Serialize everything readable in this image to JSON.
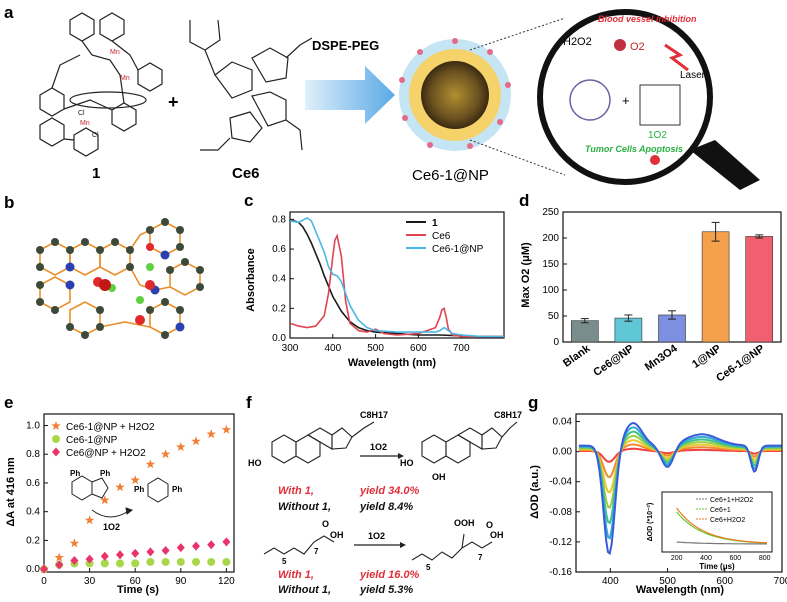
{
  "panels": {
    "a": {
      "letter": "a",
      "compound1_label": "1",
      "ce6_label": "Ce6",
      "plus": "+",
      "arrow_label": "DSPE-PEG",
      "np_label": "Ce6-1@NP",
      "h2o2": "H2O2",
      "o2": "O2",
      "blood_vessel": "Blood vessel inhibition",
      "laser": "Laser",
      "singlet_o2": "1O2",
      "tumor_cells": "Tumor Cells Apoptosis",
      "cl": "Cl",
      "mn": "Mn"
    },
    "b": {
      "letter": "b"
    },
    "f": {
      "letter": "f",
      "sub1": "C8H17",
      "reagent": "1O2",
      "with1_a": "With 1,",
      "yield1_a": "yield 34.0%",
      "without1_a": "Without 1,",
      "yield2_a": "yield 8.4%",
      "with1_b": "With 1,",
      "yield1_b": "yield 16.0%",
      "without1_b": "Without 1,",
      "yield2_b": "yield 5.3%",
      "ho": "HO",
      "oh": "OH",
      "ooh": "OOH",
      "o": "O",
      "sub_5": "5",
      "sub_7": "7"
    }
  },
  "colors": {
    "black": "#1a1a1a",
    "red": "#e0454f",
    "cyan": "#4cb7e6",
    "orange": "#f07e36",
    "green": "#a8d84a",
    "pink": "#e8346a",
    "bar_blank": "#7a8c8c",
    "bar_ce6np": "#5fc7d6",
    "bar_mn3o4": "#7c8fe0",
    "bar_1np": "#f5a04a",
    "bar_ce61np": "#f0606e"
  },
  "chart_data": [
    {
      "id": "c",
      "letter": "c",
      "type": "line",
      "xlabel": "Wavelength (nm)",
      "ylabel": "Absorbance",
      "xlim": [
        300,
        800
      ],
      "ylim": [
        0,
        0.85
      ],
      "xticks": [
        300,
        400,
        500,
        600,
        700
      ],
      "yticks": [
        0.0,
        0.2,
        0.4,
        0.6,
        0.8
      ],
      "legend_position": "top-right",
      "series": [
        {
          "name": "1",
          "x": [
            300,
            310,
            320,
            330,
            340,
            350,
            360,
            370,
            380,
            390,
            400,
            420,
            440,
            460,
            480,
            500,
            550,
            600,
            650,
            700,
            750,
            800
          ],
          "values": [
            0.79,
            0.79,
            0.78,
            0.75,
            0.7,
            0.64,
            0.57,
            0.5,
            0.42,
            0.35,
            0.28,
            0.18,
            0.11,
            0.07,
            0.05,
            0.04,
            0.03,
            0.02,
            0.02,
            0.015,
            0.01,
            0.01
          ]
        },
        {
          "name": "Ce6",
          "x": [
            300,
            320,
            340,
            360,
            380,
            390,
            400,
            405,
            410,
            420,
            430,
            440,
            460,
            480,
            500,
            520,
            550,
            600,
            640,
            650,
            655,
            660,
            665,
            670,
            680,
            700,
            750,
            800
          ],
          "values": [
            0.1,
            0.08,
            0.07,
            0.08,
            0.15,
            0.3,
            0.55,
            0.66,
            0.69,
            0.55,
            0.25,
            0.1,
            0.05,
            0.04,
            0.06,
            0.03,
            0.02,
            0.03,
            0.07,
            0.14,
            0.19,
            0.2,
            0.14,
            0.06,
            0.02,
            0.01,
            0.01,
            0.01
          ]
        },
        {
          "name": "Ce6-1@NP",
          "x": [
            300,
            320,
            340,
            350,
            360,
            380,
            390,
            400,
            410,
            420,
            440,
            460,
            480,
            500,
            550,
            600,
            640,
            650,
            660,
            670,
            680,
            700,
            750,
            800
          ],
          "values": [
            0.79,
            0.78,
            0.81,
            0.79,
            0.72,
            0.58,
            0.48,
            0.43,
            0.42,
            0.38,
            0.22,
            0.12,
            0.07,
            0.05,
            0.04,
            0.04,
            0.04,
            0.05,
            0.07,
            0.05,
            0.03,
            0.02,
            0.01,
            0.01
          ]
        }
      ]
    },
    {
      "id": "d",
      "letter": "d",
      "type": "bar",
      "ylabel": "Max O2 (μM)",
      "categories": [
        "Blank",
        "Ce6@NP",
        "Mn3O4",
        "1@NP",
        "Ce6-1@NP"
      ],
      "values": [
        41,
        46,
        52,
        212,
        203
      ],
      "errors": [
        4,
        6,
        8,
        18,
        3
      ],
      "ylim": [
        0,
        250
      ],
      "yticks": [
        0,
        50,
        100,
        150,
        200,
        250
      ]
    },
    {
      "id": "e",
      "letter": "e",
      "type": "scatter",
      "xlabel": "Time (s)",
      "ylabel": "ΔA at 416 nm",
      "xlim": [
        0,
        125
      ],
      "ylim": [
        -0.02,
        1.08
      ],
      "xticks": [
        0,
        30,
        60,
        90,
        120
      ],
      "yticks": [
        0.0,
        0.2,
        0.4,
        0.6,
        0.8,
        1.0
      ],
      "legend_position": "top-left",
      "scheme_label": "1O2",
      "scheme_ph": "Ph",
      "series": [
        {
          "name": "Ce6-1@NP + H2O2",
          "marker": "star",
          "x": [
            0,
            10,
            20,
            30,
            40,
            50,
            60,
            70,
            80,
            90,
            100,
            110,
            120
          ],
          "values": [
            0.0,
            0.08,
            0.18,
            0.34,
            0.48,
            0.57,
            0.62,
            0.73,
            0.8,
            0.85,
            0.89,
            0.94,
            0.97
          ]
        },
        {
          "name": "Ce6-1@NP",
          "marker": "circle",
          "x": [
            0,
            10,
            20,
            30,
            40,
            50,
            60,
            70,
            80,
            90,
            100,
            110,
            120
          ],
          "values": [
            0.0,
            0.03,
            0.04,
            0.04,
            0.04,
            0.04,
            0.04,
            0.05,
            0.05,
            0.05,
            0.05,
            0.05,
            0.05
          ]
        },
        {
          "name": "Ce6@NP + H2O2",
          "marker": "diamond",
          "x": [
            0,
            10,
            20,
            30,
            40,
            50,
            60,
            70,
            80,
            90,
            100,
            110,
            120
          ],
          "values": [
            0.0,
            0.03,
            0.06,
            0.07,
            0.09,
            0.1,
            0.11,
            0.12,
            0.13,
            0.15,
            0.16,
            0.17,
            0.19
          ]
        }
      ]
    },
    {
      "id": "g",
      "letter": "g",
      "type": "line",
      "xlabel": "Wavelength (nm)",
      "ylabel": "ΔOD (a.u.)",
      "xlim": [
        340,
        700
      ],
      "ylim": [
        -0.16,
        0.05
      ],
      "xticks": [
        400,
        500,
        600,
        700
      ],
      "yticks": [
        0.04,
        0.0,
        -0.04,
        -0.08,
        -0.12,
        -0.16
      ],
      "spectra_colors": [
        "#f04040",
        "#f08a30",
        "#e8c830",
        "#9ad040",
        "#3fc08a",
        "#30a8d8",
        "#3a5ad8"
      ],
      "spectra_scales": [
        0.1,
        0.25,
        0.4,
        0.55,
        0.7,
        0.85,
        1.0
      ],
      "inset": {
        "xlabel": "Time (μs)",
        "ylabel": "ΔOD (*10⁻²)",
        "xticks": [
          200,
          400,
          600,
          800
        ],
        "series": [
          {
            "name": "Ce6+1+H2O2",
            "color": "#777777"
          },
          {
            "name": "Ce6+1",
            "color": "#66cc33"
          },
          {
            "name": "Ce6+H2O2",
            "color": "#e87a20"
          }
        ]
      }
    }
  ]
}
